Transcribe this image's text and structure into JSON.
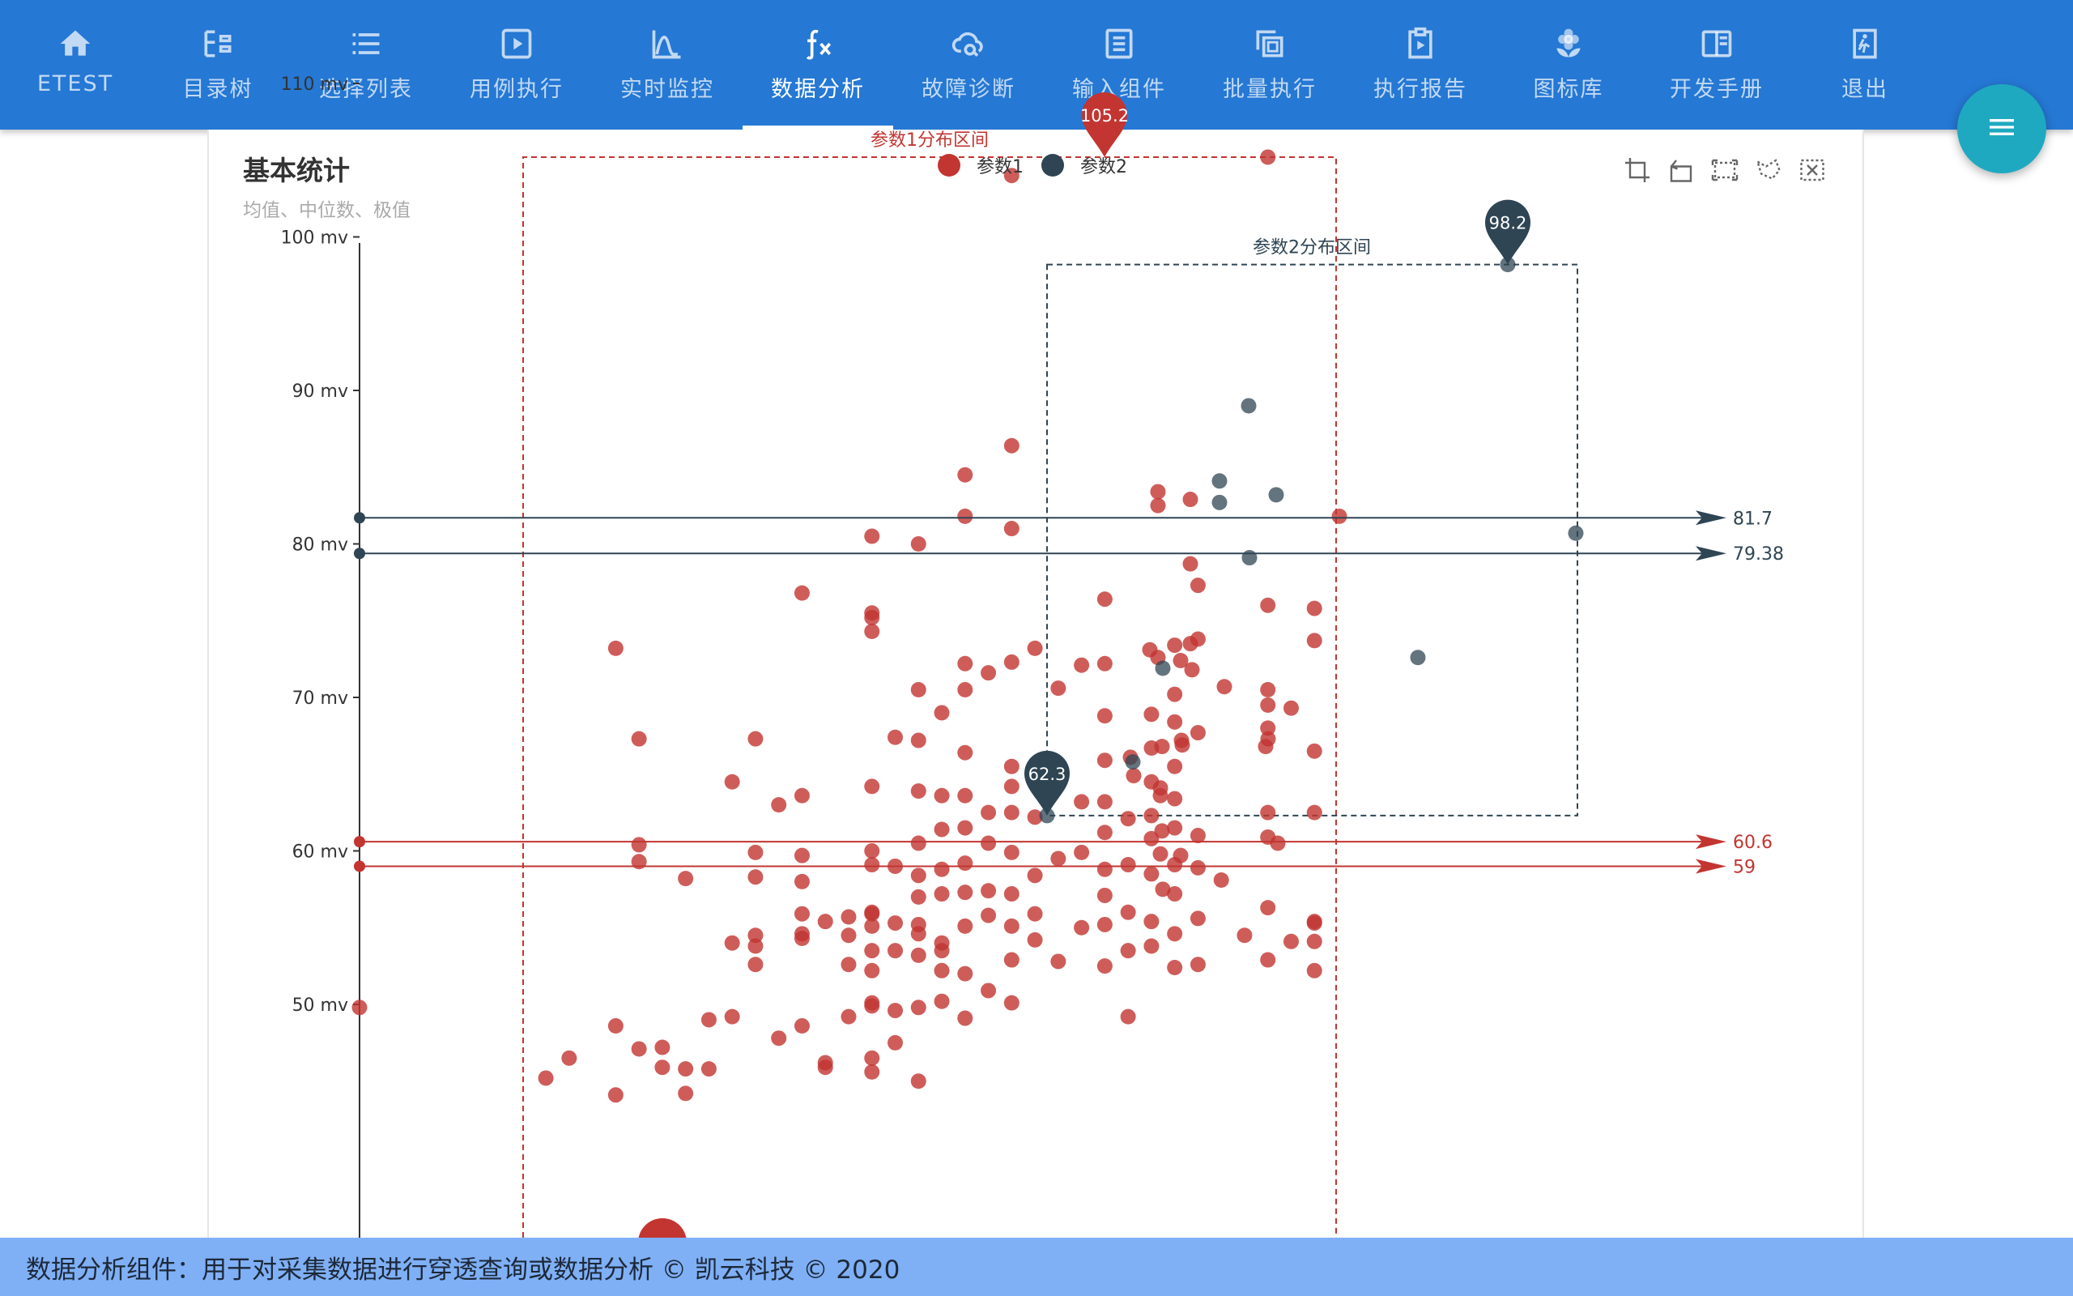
{
  "nav": {
    "items": [
      {
        "label": "ETEST",
        "icon": "home-icon"
      },
      {
        "label": "目录树",
        "icon": "tree-icon"
      },
      {
        "label": "选择列表",
        "icon": "list-icon"
      },
      {
        "label": "用例执行",
        "icon": "play-box-icon"
      },
      {
        "label": "实时监控",
        "icon": "curve-icon"
      },
      {
        "label": "数据分析",
        "icon": "function-icon"
      },
      {
        "label": "故障诊断",
        "icon": "cloud-search-icon"
      },
      {
        "label": "输入组件",
        "icon": "form-icon"
      },
      {
        "label": "批量执行",
        "icon": "copy-icon"
      },
      {
        "label": "执行报告",
        "icon": "clipboard-play-icon"
      },
      {
        "label": "图标库",
        "icon": "flower-icon"
      },
      {
        "label": "开发手册",
        "icon": "book-icon"
      },
      {
        "label": "退出",
        "icon": "exit-icon"
      }
    ],
    "active_index": 5
  },
  "colors": {
    "nav_bg": "#2578d4",
    "param1": "#c23531",
    "param2": "#2f4554",
    "fab": "#1fa9c1",
    "footer_bg": "#7fb0f6"
  },
  "toolbox": [
    "zoom-icon",
    "zoom-reset-icon",
    "rect-select-icon",
    "lasso-select-icon",
    "clear-select-icon"
  ],
  "footer": {
    "text": "数据分析组件：用于对采集数据进行穿透查询或数据分析  © 凯云科技 © 2020"
  },
  "chart_data": {
    "type": "scatter",
    "title": "基本统计",
    "subtitle": "均值、中位数、极值",
    "y_unit": " mv",
    "ylim": [
      43,
      110
    ],
    "y_ticks": [
      50,
      60,
      70,
      80,
      90,
      100,
      110
    ],
    "xlim": [
      150,
      192
    ],
    "legend_position": "top-center",
    "series": [
      {
        "name": "参数1",
        "color": "#c23531",
        "points": [
          [
            150,
            49.8
          ],
          [
            158,
            45.2
          ],
          [
            159,
            46.5
          ],
          [
            161,
            48.6
          ],
          [
            161,
            44.1
          ],
          [
            162,
            47.1
          ],
          [
            163,
            45.9
          ],
          [
            163,
            47.2
          ],
          [
            164,
            44.2
          ],
          [
            164,
            45.8
          ],
          [
            165,
            45.8
          ],
          [
            165,
            49
          ],
          [
            166,
            49.2
          ],
          [
            166,
            54
          ],
          [
            167,
            52.6
          ],
          [
            167,
            53.8
          ],
          [
            167,
            54.5
          ],
          [
            161,
            73.2
          ],
          [
            162,
            59.3
          ],
          [
            162,
            67.3
          ],
          [
            162,
            60.4
          ],
          [
            164,
            58.2
          ],
          [
            166,
            64.5
          ],
          [
            167,
            59.9
          ],
          [
            167,
            58.3
          ],
          [
            167,
            67.3
          ],
          [
            168,
            63
          ],
          [
            168,
            47.8
          ],
          [
            169,
            76.8
          ],
          [
            169,
            63.6
          ],
          [
            169,
            59.7
          ],
          [
            169,
            58
          ],
          [
            169,
            55.9
          ],
          [
            169,
            54.6
          ],
          [
            169,
            54.3
          ],
          [
            169,
            48.6
          ],
          [
            170,
            55.4
          ],
          [
            170,
            45.9
          ],
          [
            170,
            46.2
          ],
          [
            171,
            49.2
          ],
          [
            171,
            55.7
          ],
          [
            171,
            54.5
          ],
          [
            171,
            52.6
          ],
          [
            172,
            75.5
          ],
          [
            172,
            75.2
          ],
          [
            172,
            74.3
          ],
          [
            172,
            80.5
          ],
          [
            172,
            64.2
          ],
          [
            172,
            60
          ],
          [
            172,
            59.1
          ],
          [
            172,
            56
          ],
          [
            172,
            55.9
          ],
          [
            172,
            55.1
          ],
          [
            172,
            53.5
          ],
          [
            172,
            52.2
          ],
          [
            172,
            50.1
          ],
          [
            172,
            49.9
          ],
          [
            172,
            46.5
          ],
          [
            172,
            45.6
          ],
          [
            173,
            67.4
          ],
          [
            173,
            59
          ],
          [
            173,
            55.3
          ],
          [
            173,
            53.5
          ],
          [
            173,
            49.6
          ],
          [
            173,
            47.5
          ],
          [
            174,
            80
          ],
          [
            174,
            67.2
          ],
          [
            174,
            70.5
          ],
          [
            174,
            63.9
          ],
          [
            174,
            60.5
          ],
          [
            174,
            58.4
          ],
          [
            174,
            57
          ],
          [
            174,
            55.2
          ],
          [
            174,
            54.6
          ],
          [
            174,
            53.2
          ],
          [
            174,
            49.8
          ],
          [
            174,
            45
          ],
          [
            175,
            69
          ],
          [
            175,
            63.6
          ],
          [
            175,
            61.4
          ],
          [
            175,
            58.8
          ],
          [
            175,
            57.2
          ],
          [
            175,
            54
          ],
          [
            175,
            53.5
          ],
          [
            175,
            52.2
          ],
          [
            175,
            50.2
          ],
          [
            176,
            84.5
          ],
          [
            176,
            81.8
          ],
          [
            176,
            72.2
          ],
          [
            176,
            70.5
          ],
          [
            176,
            66.4
          ],
          [
            176,
            63.6
          ],
          [
            176,
            61.5
          ],
          [
            176,
            59.2
          ],
          [
            176,
            57.3
          ],
          [
            176,
            55.1
          ],
          [
            176,
            52
          ],
          [
            176,
            49.1
          ],
          [
            177,
            71.6
          ],
          [
            177,
            62.5
          ],
          [
            177,
            60.5
          ],
          [
            177,
            57.4
          ],
          [
            177,
            55.8
          ],
          [
            177,
            50.9
          ],
          [
            178,
            104
          ],
          [
            178,
            86.4
          ],
          [
            178,
            81
          ],
          [
            178,
            72.3
          ],
          [
            178,
            64.2
          ],
          [
            178,
            62.5
          ],
          [
            178,
            59.9
          ],
          [
            178,
            57.2
          ],
          [
            178,
            55.1
          ],
          [
            178,
            52.9
          ],
          [
            178,
            50.1
          ],
          [
            178,
            65.5
          ],
          [
            179,
            73.2
          ],
          [
            179,
            62.2
          ],
          [
            179,
            58.4
          ],
          [
            179,
            55.9
          ],
          [
            179,
            54.2
          ],
          [
            180,
            70.6
          ],
          [
            180,
            59.5
          ],
          [
            180,
            52.8
          ],
          [
            181,
            72.1
          ],
          [
            181,
            63.2
          ],
          [
            181,
            59.9
          ],
          [
            181,
            55
          ],
          [
            182,
            76.4
          ],
          [
            182,
            72.2
          ],
          [
            182,
            68.8
          ],
          [
            182,
            65.9
          ],
          [
            182,
            63.2
          ],
          [
            182,
            61.2
          ],
          [
            182,
            58.8
          ],
          [
            182,
            57.1
          ],
          [
            182,
            55.2
          ],
          [
            182,
            52.5
          ],
          [
            183,
            62.1
          ],
          [
            183,
            59.1
          ],
          [
            183,
            56
          ],
          [
            183,
            53.5
          ],
          [
            183,
            49.2
          ],
          [
            184,
            68.9
          ],
          [
            184,
            64.5
          ],
          [
            184,
            62.3
          ],
          [
            184,
            60.8
          ],
          [
            184,
            58.5
          ],
          [
            184,
            55.4
          ],
          [
            184,
            53.8
          ],
          [
            185,
            73.4
          ],
          [
            185,
            70.2
          ],
          [
            185,
            68.4
          ],
          [
            185,
            65.5
          ],
          [
            185,
            63.4
          ],
          [
            185,
            61.5
          ],
          [
            185,
            59.1
          ],
          [
            185,
            57.2
          ],
          [
            185,
            54.6
          ],
          [
            185,
            52.4
          ],
          [
            186,
            77.3
          ],
          [
            186,
            73.8
          ],
          [
            186,
            67.7
          ],
          [
            186,
            61
          ],
          [
            186,
            58.9
          ],
          [
            186,
            55.6
          ],
          [
            186,
            52.6
          ],
          [
            187,
            58.1
          ],
          [
            188,
            54.5
          ],
          [
            189,
            76
          ],
          [
            189,
            70.5
          ],
          [
            189,
            69.5
          ],
          [
            189,
            68
          ],
          [
            189,
            62.5
          ],
          [
            189,
            60.9
          ],
          [
            189,
            56.3
          ],
          [
            189,
            52.9
          ],
          [
            189,
            105.2
          ],
          [
            190,
            69.3
          ],
          [
            190,
            54.1
          ],
          [
            191,
            75.8
          ],
          [
            191,
            73.7
          ],
          [
            191,
            66.5
          ],
          [
            191,
            55.3
          ],
          [
            191,
            54.1
          ],
          [
            191,
            52.2
          ],
          [
            191,
            55.4
          ],
          [
            191,
            62.5
          ]
        ],
        "extra_points_xy": [
          [
            1430,
            82.5
          ],
          [
            1470,
            78.7
          ],
          [
            1430,
            83.4
          ],
          [
            1458,
            72.4
          ],
          [
            1420,
            73.1
          ],
          [
            1430,
            72.6
          ],
          [
            1435,
            66.8
          ],
          [
            1433,
            63.6
          ],
          [
            1435,
            61.3
          ],
          [
            1433,
            59.8
          ],
          [
            1460,
            66.9
          ],
          [
            1459,
            67.2
          ],
          [
            1470,
            73.5
          ],
          [
            1472,
            71.8
          ],
          [
            1458,
            59.7
          ],
          [
            1512,
            70.7
          ],
          [
            1563,
            66.8
          ],
          [
            1566,
            67.3
          ],
          [
            1578,
            60.5
          ],
          [
            1470,
            82.9
          ],
          [
            1433,
            64.1
          ],
          [
            1654,
            81.8
          ],
          [
            1436,
            57.5
          ],
          [
            1422,
            66.7
          ],
          [
            1396,
            66.1
          ],
          [
            1400,
            64.9
          ]
        ],
        "box": {
          "label": "参数1分布区间",
          "y_max": 105.2,
          "y_min_visible": 43
        },
        "max_pin": {
          "value": "105.2",
          "y": 105.2
        },
        "min_pin": {
          "y": 44
        },
        "lines": [
          {
            "label": "60.6",
            "y": 60.6
          },
          {
            "label": "59",
            "y": 59
          }
        ]
      },
      {
        "name": "参数2",
        "color": "#2f4554",
        "points_xy": [
          [
            1542,
            89
          ],
          [
            1506,
            84.1
          ],
          [
            1576,
            83.2
          ],
          [
            1506,
            82.7
          ],
          [
            1946,
            80.7
          ],
          [
            1543,
            79.1
          ],
          [
            1751,
            72.6
          ],
          [
            1436,
            71.9
          ],
          [
            1399,
            65.8
          ],
          [
            1293,
            62.3
          ],
          [
            1862,
            98.2
          ]
        ],
        "box": {
          "label": "参数2分布区间",
          "y_max": 98.2,
          "y_min": 62.3
        },
        "max_pin": {
          "value": "98.2",
          "y": 98.2
        },
        "min_pin": {
          "value": "62.3",
          "y": 62.3
        },
        "lines": [
          {
            "label": "81.7",
            "y": 81.7
          },
          {
            "label": "79.38",
            "y": 79.38
          }
        ]
      }
    ]
  }
}
